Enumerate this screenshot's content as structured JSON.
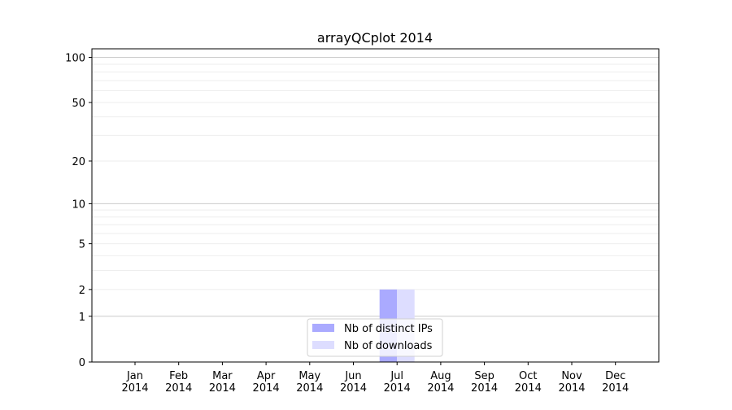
{
  "chart_data": {
    "type": "bar",
    "title": "arrayQCplot 2014",
    "xlabel": "",
    "ylabel": "",
    "y_scale": "symlog (log10(1+y))",
    "ylim": [
      0,
      114
    ],
    "yticks": [
      0,
      1,
      2,
      5,
      10,
      20,
      50,
      100
    ],
    "grid": true,
    "legend_position": "bottom-center",
    "categories": [
      "Jan\n2014",
      "Feb\n2014",
      "Mar\n2014",
      "Apr\n2014",
      "May\n2014",
      "Jun\n2014",
      "Jul\n2014",
      "Aug\n2014",
      "Sep\n2014",
      "Oct\n2014",
      "Nov\n2014",
      "Dec\n2014"
    ],
    "series": [
      {
        "name": "Nb of distinct IPs",
        "color": "#aaaaff",
        "values": [
          0,
          0,
          0,
          0,
          0,
          0,
          2,
          0,
          0,
          0,
          0,
          0
        ]
      },
      {
        "name": "Nb of downloads",
        "color": "#ddddff",
        "values": [
          0,
          0,
          0,
          0,
          0,
          0,
          2,
          0,
          0,
          0,
          0,
          0
        ]
      }
    ]
  }
}
